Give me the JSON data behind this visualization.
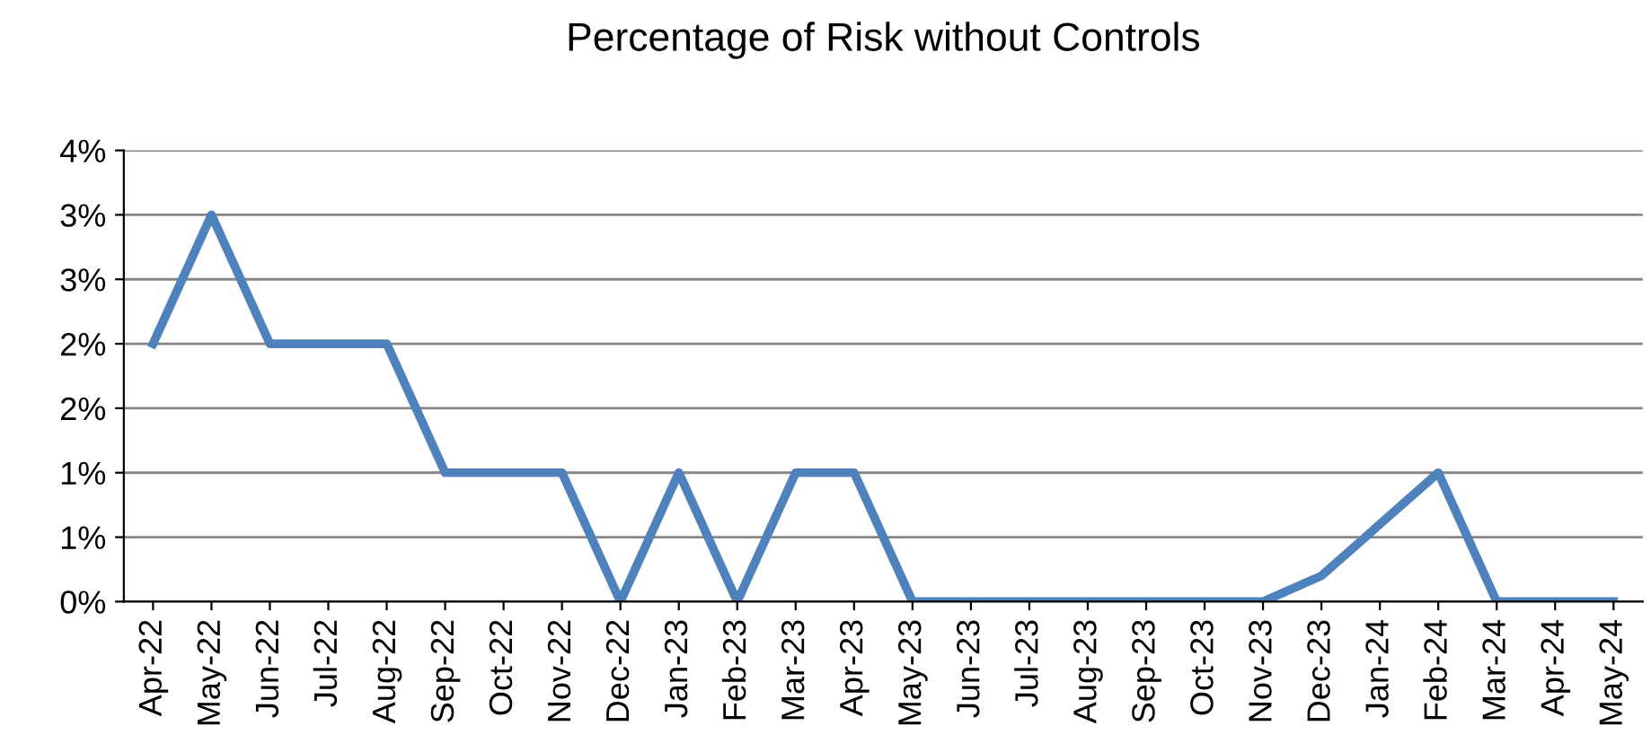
{
  "chart_data": {
    "type": "line",
    "title": "Percentage of Risk without Controls",
    "categories": [
      "Apr-22",
      "May-22",
      "Jun-22",
      "Jul-22",
      "Aug-22",
      "Sep-22",
      "Oct-22",
      "Nov-22",
      "Dec-22",
      "Jan-23",
      "Feb-23",
      "Mar-23",
      "Apr-23",
      "May-23",
      "Jun-23",
      "Jul-23",
      "Aug-23",
      "Sep-23",
      "Oct-23",
      "Nov-23",
      "Dec-23",
      "Jan-24",
      "Feb-24",
      "Mar-24",
      "Apr-24",
      "May-24"
    ],
    "series": [
      {
        "color": "#4f81bd",
        "values": [
          2.0,
          3.0,
          2.0,
          2.0,
          2.0,
          1.0,
          1.0,
          1.0,
          0,
          1.0,
          0,
          1.0,
          1.0,
          0,
          0,
          0,
          0,
          0,
          0,
          0,
          0.2,
          0.6,
          1.0,
          0,
          0,
          0
        ]
      }
    ],
    "ylim": [
      0,
      3.5
    ],
    "yticks": [
      {
        "value": 0,
        "label": "0%"
      },
      {
        "value": 0.5,
        "label": "1%"
      },
      {
        "value": 1.0,
        "label": "1%"
      },
      {
        "value": 1.5,
        "label": "2%"
      },
      {
        "value": 2.0,
        "label": "2%"
      },
      {
        "value": 2.5,
        "label": "3%"
      },
      {
        "value": 3.0,
        "label": "3%"
      },
      {
        "value": 3.5,
        "label": "4%"
      }
    ],
    "grid": "y",
    "marker": "none",
    "line_style": "solid"
  }
}
